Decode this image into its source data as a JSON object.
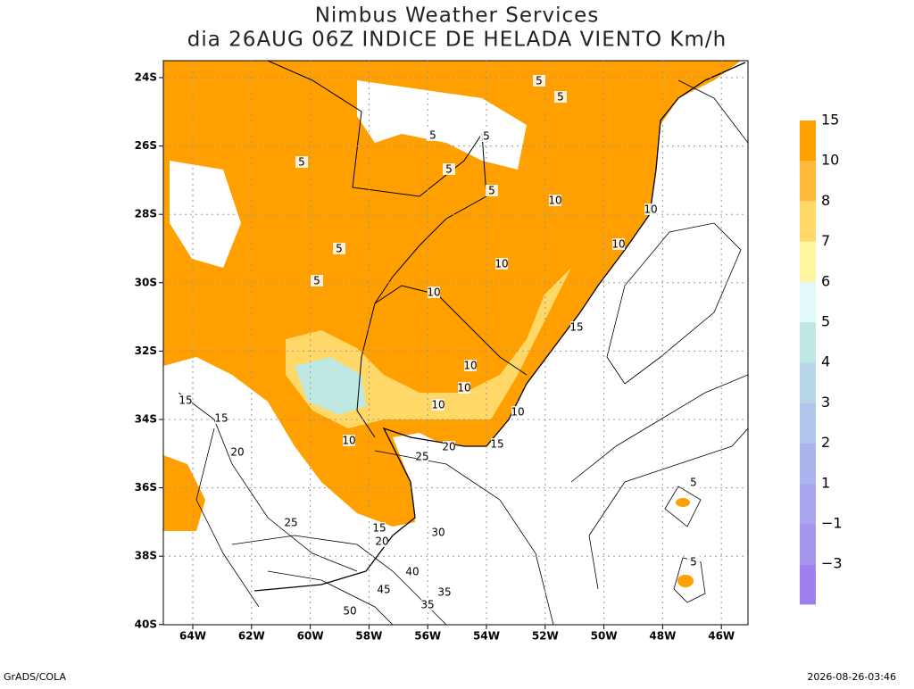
{
  "header": {
    "title_lines": [
      "Nimbus Weather Services",
      "dia 26AUG 06Z INDICE DE HELADA VIENTO Km/h"
    ]
  },
  "map": {
    "lat_labels": [
      "24S",
      "26S",
      "28S",
      "30S",
      "32S",
      "34S",
      "36S",
      "38S",
      "40S"
    ],
    "lon_labels": [
      "64W",
      "62W",
      "60W",
      "58W",
      "56W",
      "54W",
      "52W",
      "50W",
      "48W",
      "46W"
    ],
    "contour_labels": [
      "5",
      "5",
      "5",
      "5",
      "5",
      "5",
      "5",
      "5",
      "5",
      "10",
      "10",
      "10",
      "10",
      "10",
      "10",
      "10",
      "10",
      "10",
      "15",
      "15",
      "15",
      "15",
      "20",
      "20",
      "20",
      "25",
      "25",
      "30",
      "35",
      "35",
      "40",
      "45",
      "50",
      "5",
      "5",
      "10",
      "15"
    ]
  },
  "colorbar": {
    "levels": [
      {
        "label": "15",
        "color": "#ff9f00"
      },
      {
        "label": "10",
        "color": "#ffb838"
      },
      {
        "label": "8",
        "color": "#ffd868"
      },
      {
        "label": "7",
        "color": "#fff4a0"
      },
      {
        "label": "6",
        "color": "#e2fafa"
      },
      {
        "label": "5",
        "color": "#bfe8e2"
      },
      {
        "label": "4",
        "color": "#b6d6e8"
      },
      {
        "label": "3",
        "color": "#b2c6ec"
      },
      {
        "label": "2",
        "color": "#acb4ee"
      },
      {
        "label": "1",
        "color": "#a8a4ee"
      },
      {
        "label": "−1",
        "color": "#a696ee"
      },
      {
        "label": "−3",
        "color": "#a080ee"
      }
    ]
  },
  "footer": {
    "left": "GrADS/COLA",
    "right": "2026-08-26-03:46"
  }
}
